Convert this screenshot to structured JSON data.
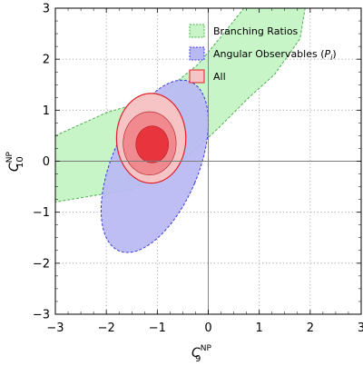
{
  "chart_data": {
    "type": "contour",
    "xlim": [
      -3,
      3
    ],
    "ylim": [
      -3,
      3
    ],
    "xticks": [
      -3,
      -2,
      -1,
      0,
      1,
      2,
      3
    ],
    "yticks": [
      -3,
      -2,
      -1,
      0,
      1,
      2,
      3
    ],
    "xtick_labels": [
      "−3",
      "−2",
      "−1",
      "0",
      "1",
      "2",
      "3"
    ],
    "ytick_labels": [
      "−3",
      "−2",
      "−1",
      "0",
      "1",
      "2",
      "3"
    ],
    "xlabel": {
      "main": "C",
      "sup": "NP",
      "sub": "9"
    },
    "ylabel": {
      "main": "C",
      "sup": "NP",
      "sub": "10"
    },
    "grid": true,
    "legend_position": "top-right",
    "reference_lines": {
      "x": 0,
      "y": 0
    },
    "series": [
      {
        "name": "Branching Ratios",
        "fill": "#c8f5c8",
        "stroke": "#4caf50",
        "dashed": true,
        "region": [
          [
            -3.0,
            0.5
          ],
          [
            -2.0,
            0.95
          ],
          [
            -1.0,
            1.25
          ],
          [
            -0.2,
            1.9
          ],
          [
            0.3,
            2.5
          ],
          [
            0.7,
            3.0
          ],
          [
            1.9,
            3.0
          ],
          [
            1.8,
            2.4
          ],
          [
            1.3,
            1.7
          ],
          [
            0.8,
            1.25
          ],
          [
            0.2,
            0.65
          ],
          [
            -0.5,
            0.0
          ],
          [
            -1.5,
            -0.55
          ],
          [
            -3.0,
            -0.8
          ]
        ]
      },
      {
        "name": "Angular Observables",
        "legend_math": "P",
        "legend_math_sub": "i",
        "fill": "#b8b8f4",
        "stroke": "#3a3ae0",
        "dashed": true,
        "ellipse": {
          "center": [
            -1.05,
            -0.1
          ],
          "semi_axes": [
            0.85,
            1.8
          ],
          "rotation_deg": 23
        }
      },
      {
        "name": "All",
        "fill": "#f7c4c6",
        "stroke": "#e0202a",
        "dashed": false,
        "levels": [
          {
            "fill": "#f7c4c6",
            "ellipse": {
              "center": [
                -1.12,
                0.45
              ],
              "semi_axes": [
                0.68,
                0.88
              ],
              "rotation_deg": 0
            }
          },
          {
            "fill": "#f08a8f",
            "ellipse": {
              "center": [
                -1.15,
                0.35
              ],
              "semi_axes": [
                0.52,
                0.62
              ],
              "rotation_deg": 0
            }
          },
          {
            "fill": "#e8353d",
            "ellipse": {
              "center": [
                -1.1,
                0.33
              ],
              "semi_axes": [
                0.32,
                0.36
              ],
              "rotation_deg": 0
            }
          }
        ]
      }
    ]
  }
}
